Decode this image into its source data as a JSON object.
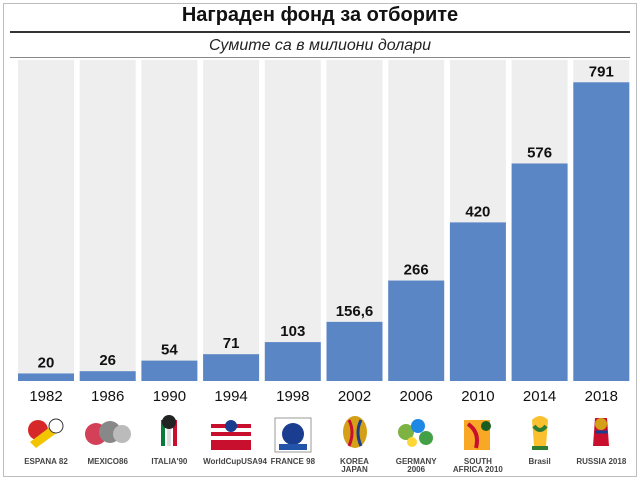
{
  "chart_data": {
    "type": "bar",
    "title": "Награден фонд за отборите",
    "subtitle": "Сумите са в милиони долари",
    "categories": [
      "1982",
      "1986",
      "1990",
      "1994",
      "1998",
      "2002",
      "2006",
      "2010",
      "2014",
      "2018"
    ],
    "values": [
      20,
      26,
      54,
      71,
      103,
      156.6,
      266,
      420,
      576,
      791
    ],
    "value_labels": [
      "20",
      "26",
      "54",
      "71",
      "103",
      "156,6",
      "266",
      "420",
      "576",
      "791"
    ],
    "ylim": [
      0,
      850
    ],
    "grid": false,
    "legend": "none",
    "colors": {
      "bar": "#5b86c5",
      "background_column": "#eeeeee",
      "text": "#111111"
    }
  },
  "logos": [
    {
      "icon": "espana-82-logo",
      "text": "ESPANA 82"
    },
    {
      "icon": "mexico-86-logo",
      "text": "MEXICO86"
    },
    {
      "icon": "italia-90-logo",
      "text": "ITALIA'90"
    },
    {
      "icon": "usa-94-logo",
      "text": "WorldCupUSA94"
    },
    {
      "icon": "france-98-logo",
      "text": "FRANCE 98"
    },
    {
      "icon": "korea-japan-2002-logo",
      "text": "KOREA JAPAN"
    },
    {
      "icon": "germany-2006-logo",
      "text": "GERMANY 2006"
    },
    {
      "icon": "south-africa-2010-logo",
      "text": "SOUTH AFRICA 2010"
    },
    {
      "icon": "brasil-2014-logo",
      "text": "Brasil"
    },
    {
      "icon": "russia-2018-logo",
      "text": "RUSSIA 2018"
    }
  ]
}
